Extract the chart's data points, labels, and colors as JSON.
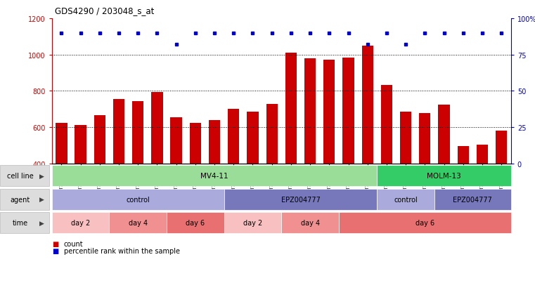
{
  "title": "GDS4290 / 203048_s_at",
  "samples": [
    "GSM739151",
    "GSM739152",
    "GSM739153",
    "GSM739157",
    "GSM739158",
    "GSM739159",
    "GSM739163",
    "GSM739164",
    "GSM739165",
    "GSM739148",
    "GSM739149",
    "GSM739150",
    "GSM739154",
    "GSM739155",
    "GSM739156",
    "GSM739160",
    "GSM739161",
    "GSM739162",
    "GSM739169",
    "GSM739170",
    "GSM739171",
    "GSM739166",
    "GSM739167",
    "GSM739168"
  ],
  "counts": [
    623,
    612,
    665,
    755,
    745,
    793,
    653,
    622,
    640,
    700,
    685,
    730,
    1010,
    978,
    970,
    982,
    1048,
    832,
    685,
    678,
    725,
    498,
    505,
    580
  ],
  "percentile_ranks": [
    90,
    90,
    90,
    90,
    90,
    90,
    82,
    90,
    90,
    90,
    90,
    90,
    90,
    90,
    90,
    90,
    82,
    90,
    82,
    90,
    90,
    90,
    90,
    90
  ],
  "bar_color": "#cc0000",
  "dot_color": "#0000cc",
  "ylim_left": [
    400,
    1200
  ],
  "ylim_right": [
    0,
    100
  ],
  "yticks_left": [
    400,
    600,
    800,
    1000,
    1200
  ],
  "yticks_right": [
    0,
    25,
    50,
    75,
    100
  ],
  "grid_values": [
    600,
    800,
    1000
  ],
  "cell_line_groups": [
    {
      "label": "MV4-11",
      "start": 0,
      "end": 17,
      "color": "#99dd99"
    },
    {
      "label": "MOLM-13",
      "start": 17,
      "end": 24,
      "color": "#33cc66"
    }
  ],
  "agent_groups": [
    {
      "label": "control",
      "start": 0,
      "end": 9,
      "color": "#aaaadd"
    },
    {
      "label": "EPZ004777",
      "start": 9,
      "end": 17,
      "color": "#7777bb"
    },
    {
      "label": "control",
      "start": 17,
      "end": 20,
      "color": "#aaaadd"
    },
    {
      "label": "EPZ004777",
      "start": 20,
      "end": 24,
      "color": "#7777bb"
    }
  ],
  "time_groups": [
    {
      "label": "day 2",
      "start": 0,
      "end": 3,
      "color": "#f8c0c0"
    },
    {
      "label": "day 4",
      "start": 3,
      "end": 6,
      "color": "#f09090"
    },
    {
      "label": "day 6",
      "start": 6,
      "end": 9,
      "color": "#e87070"
    },
    {
      "label": "day 2",
      "start": 9,
      "end": 12,
      "color": "#f8c0c0"
    },
    {
      "label": "day 4",
      "start": 12,
      "end": 15,
      "color": "#f09090"
    },
    {
      "label": "day 6",
      "start": 15,
      "end": 24,
      "color": "#e87070"
    }
  ],
  "bg_color": "#ffffff"
}
